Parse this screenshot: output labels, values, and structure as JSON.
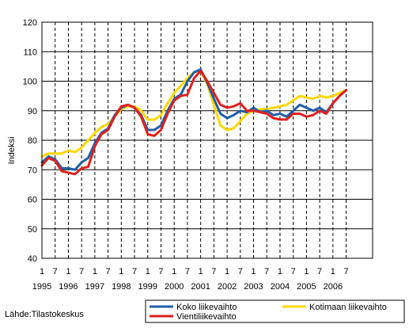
{
  "chart_data": {
    "type": "line",
    "ylabel": "Indeksi",
    "ylim": [
      40,
      120
    ],
    "yticks": [
      40,
      50,
      60,
      70,
      80,
      90,
      100,
      110,
      120
    ],
    "xlim": [
      1995.0,
      2007.5
    ],
    "x_tick_labels_top": [
      "1",
      "7",
      "1",
      "7",
      "1",
      "7",
      "1",
      "7",
      "1",
      "7",
      "1",
      "7",
      "1",
      "7",
      "1",
      "7",
      "1",
      "7",
      "1",
      "7",
      "1",
      "7",
      "1",
      "7"
    ],
    "x_tick_labels_bottom": [
      "1995",
      "1996",
      "1997",
      "1998",
      "1999",
      "2000",
      "2001",
      "2002",
      "2003",
      "2004",
      "2005",
      "2006"
    ],
    "grid": true,
    "legend_position": "bottom-right",
    "colors": {
      "koko": "#1f5fa8",
      "kotimaan": "#ffd700",
      "vienti": "#e02020",
      "grid": "#000000"
    },
    "series": [
      {
        "name": "Koko liikevaihto",
        "color": "#1f5fa8",
        "points": [
          [
            1995.0,
            72.5
          ],
          [
            1995.25,
            74.5
          ],
          [
            1995.5,
            73.5
          ],
          [
            1995.75,
            70.5
          ],
          [
            1996.0,
            70.5
          ],
          [
            1996.25,
            70.0
          ],
          [
            1996.5,
            72.5
          ],
          [
            1996.75,
            74.0
          ],
          [
            1997.0,
            79.0
          ],
          [
            1997.25,
            82.5
          ],
          [
            1997.5,
            84.0
          ],
          [
            1997.75,
            88.5
          ],
          [
            1998.0,
            91.0
          ],
          [
            1998.25,
            92.0
          ],
          [
            1998.5,
            91.0
          ],
          [
            1998.75,
            88.5
          ],
          [
            1999.0,
            83.5
          ],
          [
            1999.25,
            83.5
          ],
          [
            1999.5,
            85.0
          ],
          [
            1999.75,
            90.0
          ],
          [
            2000.0,
            94.0
          ],
          [
            2000.25,
            95.5
          ],
          [
            2000.5,
            100.0
          ],
          [
            2000.75,
            103.0
          ],
          [
            2001.0,
            104.0
          ],
          [
            2001.25,
            99.5
          ],
          [
            2001.5,
            94.0
          ],
          [
            2001.75,
            89.0
          ],
          [
            2002.0,
            87.5
          ],
          [
            2002.25,
            88.5
          ],
          [
            2002.5,
            90.0
          ],
          [
            2002.75,
            89.5
          ],
          [
            2003.0,
            91.0
          ],
          [
            2003.25,
            89.5
          ],
          [
            2003.5,
            90.0
          ],
          [
            2003.75,
            88.5
          ],
          [
            2004.0,
            89.0
          ],
          [
            2004.25,
            88.0
          ],
          [
            2004.5,
            90.0
          ],
          [
            2004.75,
            92.0
          ],
          [
            2005.0,
            91.0
          ],
          [
            2005.25,
            90.0
          ],
          [
            2005.5,
            91.0
          ],
          [
            2005.75,
            89.5
          ],
          [
            2006.0,
            92.5
          ],
          [
            2006.25,
            95.0
          ],
          [
            2006.5,
            97.0
          ]
        ]
      },
      {
        "name": "Kotimaan liikevaihto",
        "color": "#ffd700",
        "points": [
          [
            1995.0,
            74.5
          ],
          [
            1995.25,
            75.5
          ],
          [
            1995.5,
            75.5
          ],
          [
            1995.75,
            75.5
          ],
          [
            1996.0,
            76.5
          ],
          [
            1996.25,
            76.0
          ],
          [
            1996.5,
            77.5
          ],
          [
            1996.75,
            80.0
          ],
          [
            1997.0,
            82.5
          ],
          [
            1997.25,
            84.5
          ],
          [
            1997.5,
            85.5
          ],
          [
            1997.75,
            88.0
          ],
          [
            1998.0,
            90.5
          ],
          [
            1998.25,
            91.5
          ],
          [
            1998.5,
            91.5
          ],
          [
            1998.75,
            90.0
          ],
          [
            1999.0,
            87.0
          ],
          [
            1999.25,
            87.0
          ],
          [
            1999.5,
            88.5
          ],
          [
            1999.75,
            92.5
          ],
          [
            2000.0,
            96.0
          ],
          [
            2000.25,
            98.5
          ],
          [
            2000.5,
            101.0
          ],
          [
            2000.75,
            103.0
          ],
          [
            2001.0,
            103.5
          ],
          [
            2001.25,
            99.0
          ],
          [
            2001.5,
            92.0
          ],
          [
            2001.75,
            85.0
          ],
          [
            2002.0,
            83.5
          ],
          [
            2002.25,
            84.0
          ],
          [
            2002.5,
            86.5
          ],
          [
            2002.75,
            89.0
          ],
          [
            2003.0,
            90.0
          ],
          [
            2003.25,
            90.5
          ],
          [
            2003.5,
            90.5
          ],
          [
            2003.75,
            91.0
          ],
          [
            2004.0,
            91.5
          ],
          [
            2004.25,
            92.0
          ],
          [
            2004.5,
            93.5
          ],
          [
            2004.75,
            95.0
          ],
          [
            2005.0,
            94.5
          ],
          [
            2005.25,
            94.0
          ],
          [
            2005.5,
            95.0
          ],
          [
            2005.75,
            94.5
          ],
          [
            2006.0,
            95.0
          ],
          [
            2006.25,
            96.0
          ],
          [
            2006.5,
            97.0
          ]
        ]
      },
      {
        "name": "Vientiliikevaihto",
        "color": "#e02020",
        "points": [
          [
            1995.0,
            71.5
          ],
          [
            1995.25,
            74.0
          ],
          [
            1995.5,
            73.0
          ],
          [
            1995.75,
            69.5
          ],
          [
            1996.0,
            69.0
          ],
          [
            1996.25,
            68.5
          ],
          [
            1996.5,
            70.5
          ],
          [
            1996.75,
            71.0
          ],
          [
            1997.0,
            78.0
          ],
          [
            1997.25,
            82.0
          ],
          [
            1997.5,
            83.5
          ],
          [
            1997.75,
            88.0
          ],
          [
            1998.0,
            91.5
          ],
          [
            1998.25,
            92.0
          ],
          [
            1998.5,
            91.0
          ],
          [
            1998.75,
            88.0
          ],
          [
            1999.0,
            82.0
          ],
          [
            1999.25,
            81.5
          ],
          [
            1999.5,
            83.5
          ],
          [
            1999.75,
            89.0
          ],
          [
            2000.0,
            93.5
          ],
          [
            2000.25,
            95.0
          ],
          [
            2000.5,
            95.5
          ],
          [
            2000.75,
            101.0
          ],
          [
            2001.0,
            103.5
          ],
          [
            2001.25,
            100.0
          ],
          [
            2001.5,
            96.0
          ],
          [
            2001.75,
            92.0
          ],
          [
            2002.0,
            91.0
          ],
          [
            2002.25,
            91.5
          ],
          [
            2002.5,
            92.5
          ],
          [
            2002.75,
            90.0
          ],
          [
            2003.0,
            90.0
          ],
          [
            2003.25,
            89.5
          ],
          [
            2003.5,
            89.0
          ],
          [
            2003.75,
            87.5
          ],
          [
            2004.0,
            87.0
          ],
          [
            2004.25,
            87.0
          ],
          [
            2004.5,
            89.0
          ],
          [
            2004.75,
            89.0
          ],
          [
            2005.0,
            88.0
          ],
          [
            2005.25,
            88.5
          ],
          [
            2005.5,
            90.0
          ],
          [
            2005.75,
            89.0
          ],
          [
            2006.0,
            92.5
          ],
          [
            2006.25,
            95.0
          ],
          [
            2006.5,
            97.0
          ]
        ]
      }
    ],
    "source": "Lähde:Tilastokeskus"
  }
}
